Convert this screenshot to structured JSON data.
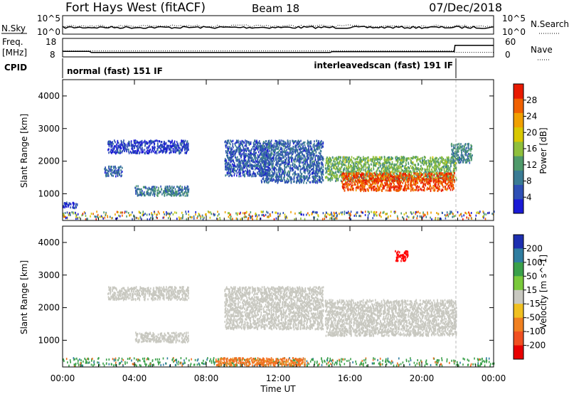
{
  "header": {
    "title": "Fort Hays West (fitACF)",
    "beam": "Beam 18",
    "date": "07/Dec/2018"
  },
  "top_panels": {
    "nsky_label": "N.Sky",
    "nsearch_label": "N.Search",
    "nsky_ticks": [
      "10^5",
      "10^0"
    ],
    "nsearch_ticks": [
      "10^5",
      "10^0"
    ],
    "freq_label_1": "Freq.",
    "freq_label_2": "[MHz]",
    "freq_ticks": [
      "18",
      "8"
    ],
    "nave_label": "Nave",
    "nave_ticks": [
      "60",
      "0"
    ],
    "cpid_label": "CPID",
    "cpid_segments": [
      {
        "start_hour": 0.0,
        "label": "normal (fast) 151 IF"
      },
      {
        "start_hour": 21.85,
        "label": "interleavedscan (fast) 191 IF"
      }
    ],
    "freq_series_mhz": [
      [
        0.0,
        11.3
      ],
      [
        0.1,
        11.2
      ],
      [
        1.5,
        11.2
      ],
      [
        1.6,
        10.6
      ],
      [
        14.9,
        10.6
      ],
      [
        15.0,
        11.1
      ],
      [
        21.8,
        11.1
      ],
      [
        21.85,
        14.8
      ],
      [
        24.0,
        14.8
      ]
    ],
    "nave_series": [
      [
        0.0,
        22
      ],
      [
        0.1,
        21
      ],
      [
        21.8,
        21
      ],
      [
        21.85,
        16
      ],
      [
        24.0,
        16
      ]
    ]
  },
  "chart_data": [
    {
      "type": "heatmap",
      "panel": "power",
      "ylabel": "Slant Range [km]",
      "yticks": [
        "1000",
        "2000",
        "3000",
        "4000"
      ],
      "ylim": [
        180,
        4500
      ],
      "xlim_hours": [
        0,
        24
      ],
      "colorbar": {
        "label": "Power [dB]",
        "ticks": [
          "4",
          "8",
          "12",
          "16",
          "20",
          "24",
          "28"
        ],
        "range": [
          0,
          32
        ]
      },
      "echo_regions": [
        {
          "t0": 0.0,
          "t1": 24.0,
          "r0": 180,
          "r1": 420,
          "level": 6,
          "kind": "ground"
        },
        {
          "t0": 0.0,
          "t1": 0.8,
          "r0": 520,
          "r1": 700,
          "level": 4
        },
        {
          "t0": 2.5,
          "t1": 7.0,
          "r0": 2200,
          "r1": 2600,
          "level": 4
        },
        {
          "t0": 4.0,
          "t1": 7.0,
          "r0": 900,
          "r1": 1200,
          "level": 9
        },
        {
          "t0": 2.3,
          "t1": 3.3,
          "r0": 1500,
          "r1": 1800,
          "level": 7
        },
        {
          "t0": 9.0,
          "t1": 11.5,
          "r0": 1500,
          "r1": 2600,
          "level": 6
        },
        {
          "t0": 11.0,
          "t1": 14.5,
          "r0": 1300,
          "r1": 2600,
          "level": 7
        },
        {
          "t0": 14.6,
          "t1": 21.9,
          "r0": 1350,
          "r1": 2100,
          "level": 14
        },
        {
          "t0": 15.5,
          "t1": 21.8,
          "r0": 1050,
          "r1": 1600,
          "level": 28
        },
        {
          "t0": 21.6,
          "t1": 22.8,
          "r0": 1900,
          "r1": 2500,
          "level": 10
        }
      ]
    },
    {
      "type": "heatmap",
      "panel": "velocity",
      "ylabel": "Slant Range [km]",
      "yticks": [
        "1000",
        "2000",
        "3000",
        "4000"
      ],
      "ylim": [
        180,
        4500
      ],
      "xlim_hours": [
        0,
        24
      ],
      "xlabel": "Time UT",
      "xticks": [
        "00:00",
        "04:00",
        "08:00",
        "12:00",
        "16:00",
        "20:00",
        "00:00"
      ],
      "colorbar": {
        "label": "Velocity [m s^-1]",
        "ticks": [
          "200",
          "100",
          "50",
          "15",
          "-15",
          "-50",
          "-100",
          "-200"
        ]
      },
      "echo_regions": [
        {
          "t0": 0.0,
          "t1": 24.0,
          "r0": 180,
          "r1": 420,
          "vel": 40,
          "kind": "ground"
        },
        {
          "t0": 8.5,
          "t1": 13.5,
          "r0": 180,
          "r1": 420,
          "vel": -40
        },
        {
          "t0": 2.5,
          "t1": 7.0,
          "r0": 2200,
          "r1": 2600,
          "vel": 0
        },
        {
          "t0": 4.0,
          "t1": 7.0,
          "r0": 900,
          "r1": 1200,
          "vel": 0
        },
        {
          "t0": 9.0,
          "t1": 14.5,
          "r0": 1300,
          "r1": 2600,
          "vel": 0
        },
        {
          "t0": 14.6,
          "t1": 21.9,
          "r0": 1100,
          "r1": 2200,
          "vel": 0
        },
        {
          "t0": 18.5,
          "t1": 19.2,
          "r0": 3400,
          "r1": 3700,
          "vel": -180
        }
      ]
    }
  ]
}
